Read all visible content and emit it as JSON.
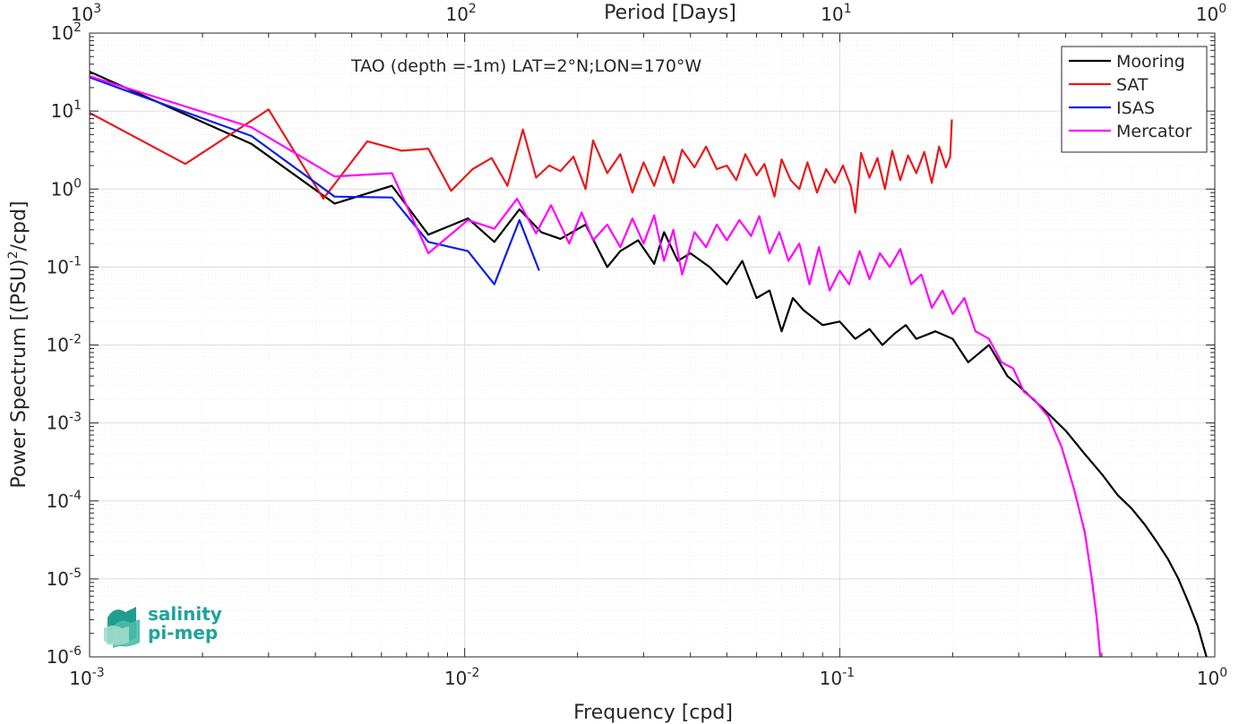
{
  "chart_data": {
    "type": "line",
    "title": "TAO (depth =-1m) LAT=2°N;LON=170°W",
    "xlabel": "Frequency [cpd]",
    "ylabel": "Power Spectrum [(PSU)²/cpd]",
    "ylabel_parts": {
      "before": "Power Spectrum [(PSU)",
      "sup": "2",
      "after": "/cpd]"
    },
    "top_xlabel": "Period [Days]",
    "x_scale": "log",
    "y_scale": "log",
    "xlim": [
      0.001,
      1
    ],
    "ylim": [
      1e-06,
      100
    ],
    "grid": true,
    "minor_grid": true,
    "legend_position": "top-right",
    "x_ticks": [
      {
        "value": 0.001,
        "base": "10",
        "exp": "-3"
      },
      {
        "value": 0.01,
        "base": "10",
        "exp": "-2"
      },
      {
        "value": 0.1,
        "base": "10",
        "exp": "-1"
      },
      {
        "value": 1,
        "base": "10",
        "exp": "0"
      }
    ],
    "top_ticks": [
      {
        "value": 0.001,
        "base": "10",
        "exp": "3"
      },
      {
        "value": 0.01,
        "base": "10",
        "exp": "2"
      },
      {
        "value": 0.1,
        "base": "10",
        "exp": "1"
      },
      {
        "value": 1,
        "base": "10",
        "exp": "0"
      }
    ],
    "y_ticks": [
      {
        "value": 100,
        "base": "10",
        "exp": "2"
      },
      {
        "value": 10,
        "base": "10",
        "exp": "1"
      },
      {
        "value": 1,
        "base": "10",
        "exp": "0"
      },
      {
        "value": 0.1,
        "base": "10",
        "exp": "-1"
      },
      {
        "value": 0.01,
        "base": "10",
        "exp": "-2"
      },
      {
        "value": 0.001,
        "base": "10",
        "exp": "-3"
      },
      {
        "value": 0.0001,
        "base": "10",
        "exp": "-4"
      },
      {
        "value": 1e-05,
        "base": "10",
        "exp": "-5"
      },
      {
        "value": 1e-06,
        "base": "10",
        "exp": "-6"
      }
    ],
    "series": [
      {
        "name": "Mooring",
        "color": "#000000",
        "x": [
          0.001,
          0.0027,
          0.0045,
          0.0064,
          0.008,
          0.0102,
          0.012,
          0.014,
          0.016,
          0.018,
          0.021,
          0.024,
          0.026,
          0.029,
          0.032,
          0.034,
          0.037,
          0.04,
          0.045,
          0.05,
          0.055,
          0.06,
          0.065,
          0.07,
          0.075,
          0.08,
          0.09,
          0.1,
          0.11,
          0.12,
          0.13,
          0.14,
          0.15,
          0.16,
          0.18,
          0.2,
          0.22,
          0.25,
          0.28,
          0.3,
          0.35,
          0.4,
          0.45,
          0.5,
          0.55,
          0.6,
          0.65,
          0.7,
          0.75,
          0.8,
          0.85,
          0.9,
          0.95
        ],
        "y": [
          32,
          3.8,
          0.65,
          1.1,
          0.26,
          0.42,
          0.21,
          0.55,
          0.28,
          0.23,
          0.35,
          0.1,
          0.16,
          0.22,
          0.11,
          0.28,
          0.12,
          0.15,
          0.1,
          0.06,
          0.12,
          0.04,
          0.05,
          0.015,
          0.04,
          0.028,
          0.018,
          0.02,
          0.012,
          0.016,
          0.01,
          0.014,
          0.018,
          0.012,
          0.015,
          0.012,
          0.006,
          0.01,
          0.004,
          0.003,
          0.0015,
          0.0008,
          0.0004,
          0.00022,
          0.00012,
          8e-05,
          5e-05,
          3e-05,
          1.8e-05,
          1e-05,
          5e-06,
          2.5e-06,
          1e-06
        ]
      },
      {
        "name": "SAT",
        "color": "#e8191c",
        "x": [
          0.001,
          0.0018,
          0.003,
          0.0042,
          0.0055,
          0.0068,
          0.008,
          0.0092,
          0.0105,
          0.0118,
          0.013,
          0.0143,
          0.0155,
          0.0168,
          0.018,
          0.0195,
          0.021,
          0.022,
          0.024,
          0.026,
          0.028,
          0.03,
          0.032,
          0.034,
          0.036,
          0.038,
          0.041,
          0.044,
          0.047,
          0.05,
          0.053,
          0.056,
          0.06,
          0.063,
          0.067,
          0.07,
          0.074,
          0.078,
          0.082,
          0.087,
          0.092,
          0.097,
          0.102,
          0.107,
          0.11,
          0.114,
          0.12,
          0.126,
          0.132,
          0.138,
          0.145,
          0.152,
          0.16,
          0.168,
          0.176,
          0.184,
          0.192,
          0.197,
          0.199
        ],
        "y": [
          9.5,
          2.1,
          10.5,
          0.75,
          4.1,
          3.1,
          3.3,
          0.95,
          1.8,
          2.5,
          1.1,
          5.8,
          1.4,
          2.0,
          1.7,
          2.6,
          1.0,
          4.2,
          1.6,
          2.8,
          0.9,
          2.2,
          1.1,
          2.6,
          1.2,
          3.2,
          1.9,
          3.5,
          1.8,
          2.0,
          1.3,
          2.8,
          1.5,
          2.1,
          0.8,
          2.4,
          1.3,
          1.0,
          2.2,
          0.9,
          1.8,
          1.2,
          2.0,
          1.1,
          0.5,
          2.9,
          1.4,
          2.5,
          1.0,
          3.1,
          1.3,
          2.7,
          1.6,
          3.0,
          1.2,
          3.5,
          1.9,
          2.6,
          7.8
        ]
      },
      {
        "name": "ISAS",
        "color": "#0a1fe8",
        "x": [
          0.001,
          0.0027,
          0.0045,
          0.0064,
          0.008,
          0.0102,
          0.012,
          0.014,
          0.0158
        ],
        "y": [
          27,
          4.8,
          0.8,
          0.78,
          0.21,
          0.16,
          0.06,
          0.4,
          0.09
        ]
      },
      {
        "name": "Mercator",
        "color": "#ff00ff",
        "x": [
          0.001,
          0.0027,
          0.0045,
          0.0064,
          0.008,
          0.0102,
          0.012,
          0.0138,
          0.0155,
          0.017,
          0.019,
          0.0205,
          0.022,
          0.024,
          0.026,
          0.028,
          0.03,
          0.032,
          0.034,
          0.036,
          0.038,
          0.041,
          0.044,
          0.047,
          0.05,
          0.054,
          0.058,
          0.061,
          0.065,
          0.069,
          0.073,
          0.078,
          0.083,
          0.088,
          0.094,
          0.1,
          0.106,
          0.113,
          0.12,
          0.128,
          0.136,
          0.145,
          0.155,
          0.165,
          0.176,
          0.188,
          0.2,
          0.215,
          0.23,
          0.25,
          0.27,
          0.29,
          0.31,
          0.33,
          0.36,
          0.39,
          0.42,
          0.45,
          0.47,
          0.485,
          0.495
        ],
        "y": [
          28,
          6.2,
          1.45,
          1.6,
          0.15,
          0.4,
          0.31,
          0.75,
          0.27,
          0.62,
          0.2,
          0.5,
          0.22,
          0.35,
          0.18,
          0.42,
          0.2,
          0.46,
          0.12,
          0.3,
          0.08,
          0.28,
          0.18,
          0.35,
          0.22,
          0.4,
          0.25,
          0.45,
          0.15,
          0.28,
          0.12,
          0.2,
          0.06,
          0.18,
          0.05,
          0.09,
          0.06,
          0.16,
          0.07,
          0.15,
          0.1,
          0.17,
          0.06,
          0.08,
          0.03,
          0.05,
          0.025,
          0.04,
          0.015,
          0.012,
          0.006,
          0.005,
          0.0025,
          0.002,
          0.0012,
          0.0005,
          0.00015,
          4e-05,
          1e-05,
          3e-06,
          1e-06
        ]
      }
    ]
  },
  "logo": {
    "line1": "salinity",
    "line2": "pi-mep"
  }
}
